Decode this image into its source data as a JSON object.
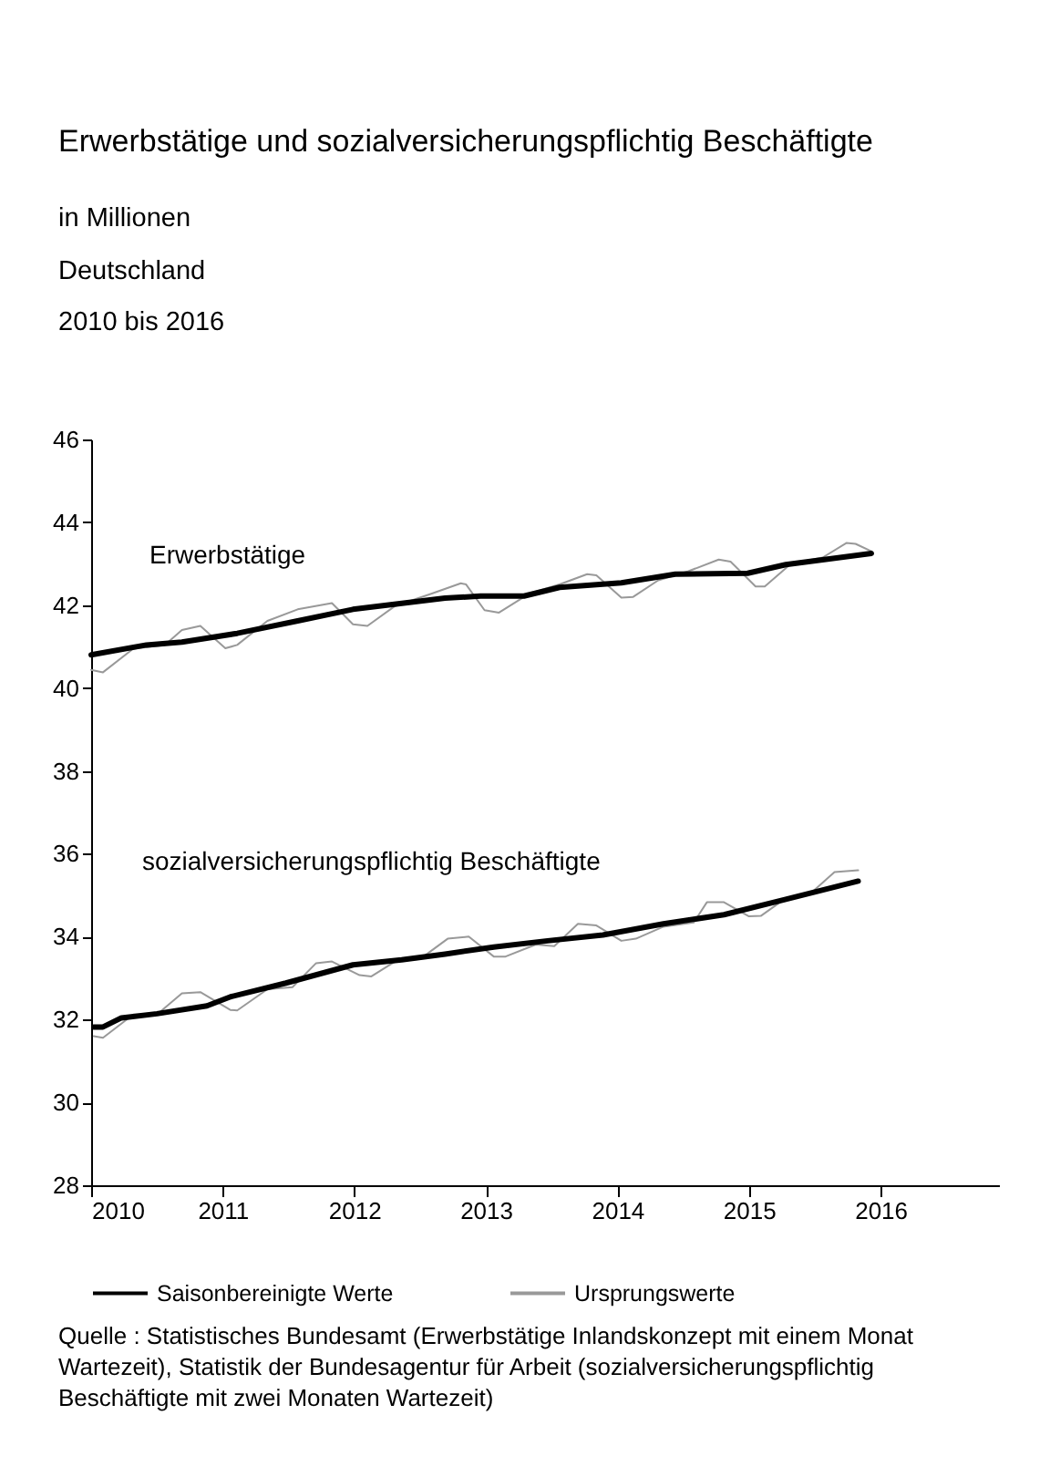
{
  "chart_data": {
    "type": "line",
    "title": "Erwerbstätige und sozialversicherungspflichtig Beschäftigte",
    "subtitle": "in Millionen\nDeutschland\n2010 bis 2016",
    "xlim": [
      2010,
      2016.9
    ],
    "xticks": [
      2010,
      2011,
      2012,
      2013,
      2014,
      2015,
      2016
    ],
    "ylim": [
      28,
      46
    ],
    "yticks": [
      28,
      30,
      32,
      34,
      36,
      38,
      40,
      42,
      44,
      46
    ],
    "grid": false,
    "legend": "bottom",
    "marker": "none",
    "line_style": "solid",
    "series": [
      {
        "name": "Ursprungswerte",
        "color": "#999999",
        "x": [
          2010.0,
          2010.09,
          2010.32,
          2010.56,
          2010.69,
          2010.83,
          2011.02,
          2011.11,
          2011.34,
          2011.57,
          2011.83,
          2011.99,
          2012.1,
          2012.31,
          2012.59,
          2012.81,
          2012.85,
          2012.99,
          2013.1,
          2013.33,
          2013.56,
          2013.77,
          2013.84,
          2014.03,
          2014.12,
          2014.31,
          2014.54,
          2014.77,
          2014.86,
          2015.05,
          2015.12,
          2015.32,
          2015.56,
          2015.74,
          2015.81,
          2015.93
        ],
        "values": [
          40.44,
          40.38,
          40.95,
          41.04,
          41.4,
          41.5,
          40.96,
          41.04,
          41.62,
          41.9,
          42.05,
          41.54,
          41.5,
          41.98,
          42.28,
          42.53,
          42.5,
          41.88,
          41.82,
          42.28,
          42.5,
          42.75,
          42.72,
          42.18,
          42.2,
          42.6,
          42.82,
          43.1,
          43.05,
          42.45,
          42.45,
          43.0,
          43.15,
          43.5,
          43.48,
          43.3
        ]
      },
      {
        "name": "Saisonbereinigte Werte",
        "color": "#000000",
        "x": [
          2010.0,
          2010.42,
          2010.69,
          2011.11,
          2011.57,
          2011.99,
          2012.69,
          2012.96,
          2013.29,
          2013.56,
          2014.03,
          2014.44,
          2014.99,
          2015.28,
          2015.93
        ],
        "values": [
          40.8,
          41.04,
          41.11,
          41.32,
          41.62,
          41.9,
          42.17,
          42.22,
          42.22,
          42.43,
          42.54,
          42.75,
          42.77,
          42.98,
          43.25
        ]
      },
      {
        "color": "#999999",
        "x": [
          2010.02,
          2010.09,
          2010.32,
          2010.5,
          2010.69,
          2010.83,
          2011.06,
          2011.11,
          2011.34,
          2011.53,
          2011.71,
          2011.83,
          2012.04,
          2012.13,
          2012.31,
          2012.5,
          2012.71,
          2012.87,
          2013.06,
          2013.15,
          2013.38,
          2013.52,
          2013.7,
          2013.84,
          2014.03,
          2014.14,
          2014.35,
          2014.58,
          2014.68,
          2014.81,
          2015.0,
          2015.09,
          2015.28,
          2015.46,
          2015.65,
          2015.83
        ],
        "values": [
          31.6,
          31.56,
          32.12,
          32.12,
          32.63,
          32.66,
          32.23,
          32.22,
          32.73,
          32.78,
          33.36,
          33.4,
          33.07,
          33.04,
          33.4,
          33.46,
          33.95,
          34.0,
          33.52,
          33.52,
          33.81,
          33.77,
          34.31,
          34.27,
          33.9,
          33.95,
          34.24,
          34.34,
          34.83,
          34.83,
          34.49,
          34.5,
          34.93,
          35.02,
          35.56,
          35.6
        ]
      },
      {
        "color": "#000000",
        "x": [
          2010.02,
          2010.09,
          2010.23,
          2010.5,
          2010.88,
          2011.06,
          2011.48,
          2011.99,
          2012.36,
          2012.69,
          2013.06,
          2013.47,
          2013.89,
          2014.35,
          2014.81,
          2015.28,
          2015.83
        ],
        "values": [
          31.82,
          31.82,
          32.04,
          32.14,
          32.33,
          32.55,
          32.88,
          33.32,
          33.44,
          33.58,
          33.75,
          33.9,
          34.04,
          34.31,
          34.53,
          34.9,
          35.34
        ]
      }
    ],
    "annotations": [
      "Erwerbstätige",
      "sozialversicherungspflichtig Beschäftigte",
      "Quelle : Statistisches Bundesamt  (Erwerbstätige Inlandskonzept mit einem Monat Wartezeit), Statistik der Bundesagentur für Arbeit (sozialversicherungspflichtig Beschäftigte mit zwei Monaten Wartezeit)"
    ]
  }
}
